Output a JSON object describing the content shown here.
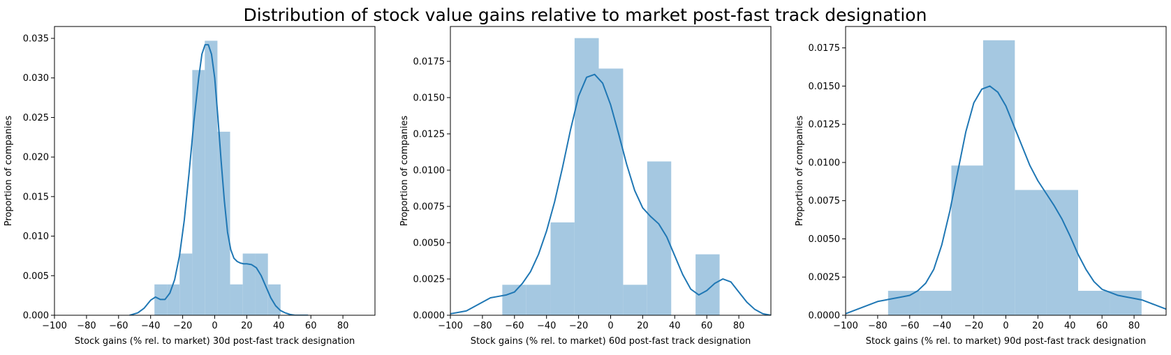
{
  "figure": {
    "title": "Distribution of stock value gains relative to market post-fast track designation"
  },
  "chart_data": [
    {
      "type": "bar",
      "subtype": "histogram-with-kde",
      "xlabel": "Stock gains (% rel. to market) 30d post-fast track designation",
      "ylabel": "Proportion of companies",
      "xlim": [
        -100,
        100
      ],
      "ylim": [
        0,
        0.0365
      ],
      "xticks": [
        -100,
        -80,
        -60,
        -40,
        -20,
        0,
        20,
        40,
        60,
        80
      ],
      "yticks": [
        0.0,
        0.005,
        0.01,
        0.015,
        0.02,
        0.025,
        0.03,
        0.035
      ],
      "ytick_labels": [
        "0.000",
        "0.005",
        "0.010",
        "0.015",
        "0.020",
        "0.025",
        "0.030",
        "0.035"
      ],
      "bin_edges": [
        -37.6,
        -29.8,
        -21.9,
        -14.0,
        -6.2,
        1.7,
        9.6,
        17.5,
        25.3,
        33.2,
        41.1
      ],
      "values": [
        0.0039,
        0.0039,
        0.0078,
        0.031,
        0.0347,
        0.0232,
        0.0039,
        0.0078,
        0.0078,
        0.0039
      ],
      "kde": {
        "x": [
          -53,
          -48,
          -44,
          -40,
          -37,
          -34,
          -31,
          -28,
          -25,
          -22,
          -19,
          -16,
          -13,
          -10,
          -8,
          -6,
          -4,
          -2,
          0,
          2,
          4,
          6,
          8,
          10,
          12,
          14,
          16,
          18,
          20,
          23,
          26,
          29,
          32,
          35,
          38,
          41,
          44,
          47,
          50,
          54,
          58
        ],
        "y": [
          0.0,
          0.0003,
          0.0009,
          0.0019,
          0.0023,
          0.002,
          0.002,
          0.0028,
          0.0045,
          0.0075,
          0.012,
          0.018,
          0.0245,
          0.03,
          0.033,
          0.0342,
          0.0342,
          0.033,
          0.03,
          0.025,
          0.0195,
          0.0145,
          0.0105,
          0.0083,
          0.0072,
          0.0068,
          0.0066,
          0.0065,
          0.0065,
          0.0064,
          0.006,
          0.005,
          0.0036,
          0.0022,
          0.0012,
          0.0006,
          0.0003,
          0.0001,
          0.0,
          0.0,
          0.0
        ]
      },
      "bar_color": "#a5c8e1",
      "line_color": "#1f77b4",
      "grid": false
    },
    {
      "type": "bar",
      "subtype": "histogram-with-kde",
      "xlabel": "Stock gains (% rel. to market) 60d post-fast track designation",
      "ylabel": "Proportion of companies",
      "xlim": [
        -100,
        100
      ],
      "ylim": [
        0,
        0.0199
      ],
      "xticks": [
        -100,
        -80,
        -60,
        -40,
        -20,
        0,
        20,
        40,
        60,
        80
      ],
      "yticks": [
        0.0,
        0.0025,
        0.005,
        0.0075,
        0.01,
        0.0125,
        0.015,
        0.0175
      ],
      "ytick_labels": [
        "0.0000",
        "0.0025",
        "0.0050",
        "0.0075",
        "0.0100",
        "0.0125",
        "0.0150",
        "0.0175"
      ],
      "bin_edges": [
        -67.6,
        -52.6,
        -37.5,
        -22.5,
        -7.4,
        7.8,
        22.8,
        37.8,
        53.0,
        68.0,
        83.1
      ],
      "values": [
        0.0021,
        0.0021,
        0.0064,
        0.0191,
        0.017,
        0.0021,
        0.0106,
        0.0,
        0.0042,
        0.0
      ],
      "kde": {
        "x": [
          -100,
          -95,
          -90,
          -85,
          -80,
          -75,
          -70,
          -65,
          -60,
          -55,
          -50,
          -45,
          -40,
          -35,
          -30,
          -25,
          -20,
          -15,
          -10,
          -5,
          0,
          5,
          10,
          15,
          20,
          25,
          30,
          35,
          40,
          45,
          50,
          55,
          60,
          65,
          70,
          75,
          80,
          85,
          90,
          95,
          100
        ],
        "y": [
          0.0001,
          0.0002,
          0.0003,
          0.0006,
          0.0009,
          0.0012,
          0.0013,
          0.0014,
          0.0016,
          0.0022,
          0.003,
          0.0042,
          0.0058,
          0.0078,
          0.0102,
          0.0128,
          0.0151,
          0.0164,
          0.0166,
          0.016,
          0.0145,
          0.0125,
          0.0104,
          0.0086,
          0.0074,
          0.0068,
          0.0063,
          0.0054,
          0.0041,
          0.0028,
          0.0018,
          0.0014,
          0.0017,
          0.0022,
          0.0025,
          0.0023,
          0.0016,
          0.0009,
          0.0004,
          0.0001,
          0.0
        ]
      },
      "bar_color": "#a5c8e1",
      "line_color": "#1f77b4",
      "grid": false
    },
    {
      "type": "bar",
      "subtype": "histogram-with-kde",
      "xlabel": "Stock gains (% rel. to market) 90d post-fast track designation",
      "ylabel": "Proportion of companies",
      "xlim": [
        -100,
        100
      ],
      "ylim": [
        0,
        0.0189
      ],
      "xticks": [
        -100,
        -80,
        -60,
        -40,
        -20,
        0,
        20,
        40,
        60,
        80
      ],
      "yticks": [
        0.0,
        0.0025,
        0.005,
        0.0075,
        0.01,
        0.0125,
        0.015,
        0.0175
      ],
      "ytick_labels": [
        "0.0000",
        "0.0025",
        "0.0050",
        "0.0075",
        "0.0100",
        "0.0125",
        "0.0150",
        "0.0175"
      ],
      "bin_edges": [
        -73.5,
        -53.8,
        -34.0,
        -14.2,
        5.6,
        25.3,
        45.1,
        64.9,
        84.7
      ],
      "values": [
        0.0016,
        0.0016,
        0.0098,
        0.018,
        0.0082,
        0.0082,
        0.0016,
        0.0016
      ],
      "kde": {
        "x": [
          -100,
          -95,
          -90,
          -85,
          -80,
          -75,
          -70,
          -65,
          -60,
          -55,
          -50,
          -45,
          -40,
          -35,
          -30,
          -25,
          -20,
          -15,
          -10,
          -5,
          0,
          5,
          10,
          15,
          20,
          25,
          30,
          35,
          40,
          45,
          50,
          55,
          60,
          65,
          70,
          75,
          80,
          85,
          90,
          95,
          100
        ],
        "y": [
          0.0001,
          0.0003,
          0.0005,
          0.0007,
          0.0009,
          0.001,
          0.0011,
          0.0012,
          0.0013,
          0.0016,
          0.0021,
          0.003,
          0.0046,
          0.0068,
          0.0094,
          0.012,
          0.0139,
          0.0148,
          0.015,
          0.0146,
          0.0137,
          0.0124,
          0.0111,
          0.0098,
          0.0088,
          0.008,
          0.0072,
          0.0063,
          0.0052,
          0.004,
          0.003,
          0.0022,
          0.0017,
          0.0015,
          0.0013,
          0.0012,
          0.0011,
          0.001,
          0.0008,
          0.0006,
          0.0004
        ]
      },
      "bar_color": "#a5c8e1",
      "line_color": "#1f77b4",
      "grid": false
    }
  ]
}
